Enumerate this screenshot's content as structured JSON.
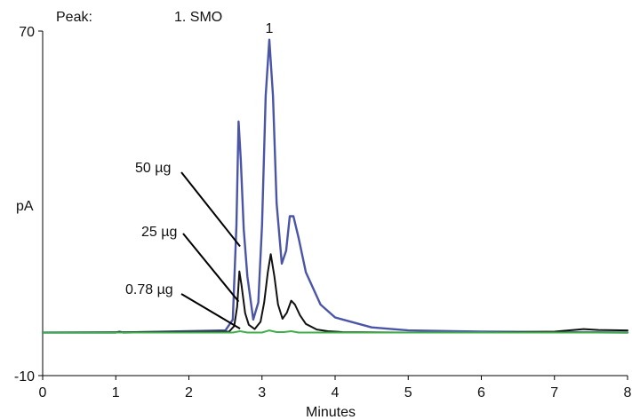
{
  "chart_data": {
    "type": "line",
    "xlabel": "Minutes",
    "ylabel": "pA",
    "xlim": [
      0,
      8
    ],
    "ylim": [
      -10,
      70
    ],
    "x_ticks": [
      0,
      1,
      2,
      3,
      4,
      5,
      6,
      7,
      8
    ],
    "y_ticks": [
      -10,
      70
    ],
    "grid": false,
    "legend": "none",
    "peak_table": {
      "header": "Peak:",
      "entries": [
        "1. SMO"
      ]
    },
    "peak_labels": [
      {
        "text": "1",
        "x": 3.1,
        "y": 70
      }
    ],
    "annotations": [
      {
        "text": "50 µg",
        "target_x": 2.7,
        "target_y": 20
      },
      {
        "text": "25 µg",
        "target_x": 2.68,
        "target_y": 7.2
      },
      {
        "text": "0.78 µg",
        "target_x": 2.7,
        "target_y": 0.9
      }
    ],
    "series": [
      {
        "name": "50 µg",
        "color": "#4a55a8",
        "x": [
          0,
          1.0,
          1.05,
          1.1,
          2.5,
          2.6,
          2.65,
          2.68,
          2.71,
          2.75,
          2.8,
          2.88,
          2.95,
          3.0,
          3.05,
          3.1,
          3.15,
          3.2,
          3.27,
          3.33,
          3.38,
          3.43,
          3.5,
          3.6,
          3.8,
          4.0,
          4.5,
          5.0,
          6.0,
          7.0,
          8.0
        ],
        "y": [
          0,
          0,
          0.2,
          0,
          0.5,
          3,
          25,
          49,
          40,
          24,
          13,
          3,
          7,
          25,
          55,
          68,
          55,
          30,
          16,
          19,
          27,
          27,
          22,
          14,
          6.5,
          3.5,
          1.2,
          0.5,
          0.2,
          0.1,
          0
        ]
      },
      {
        "name": "25 µg",
        "color": "#111111",
        "x": [
          0,
          2.55,
          2.62,
          2.66,
          2.69,
          2.72,
          2.77,
          2.82,
          2.9,
          2.98,
          3.03,
          3.08,
          3.12,
          3.17,
          3.22,
          3.28,
          3.34,
          3.4,
          3.45,
          3.52,
          3.6,
          3.75,
          3.9,
          4.1,
          5.0,
          6.0,
          7.0,
          7.4,
          7.6,
          8.0
        ],
        "y": [
          0,
          0.2,
          1.5,
          6,
          14.2,
          11,
          4.5,
          1.8,
          0.8,
          2.5,
          7,
          14,
          18.2,
          13,
          6.5,
          3.2,
          4.6,
          7.4,
          6.5,
          4,
          2,
          0.7,
          0.3,
          0.1,
          0,
          0,
          0.2,
          0.8,
          0.6,
          0.5
        ]
      },
      {
        "name": "0.78 µg",
        "color": "#3fae49",
        "x": [
          0,
          2.6,
          2.7,
          2.8,
          3.0,
          3.1,
          3.2,
          3.3,
          3.4,
          3.5,
          4.0,
          8.0
        ],
        "y": [
          0,
          0,
          0.3,
          0,
          0,
          0.5,
          0.1,
          0.1,
          0.3,
          0,
          0,
          0
        ]
      }
    ]
  }
}
